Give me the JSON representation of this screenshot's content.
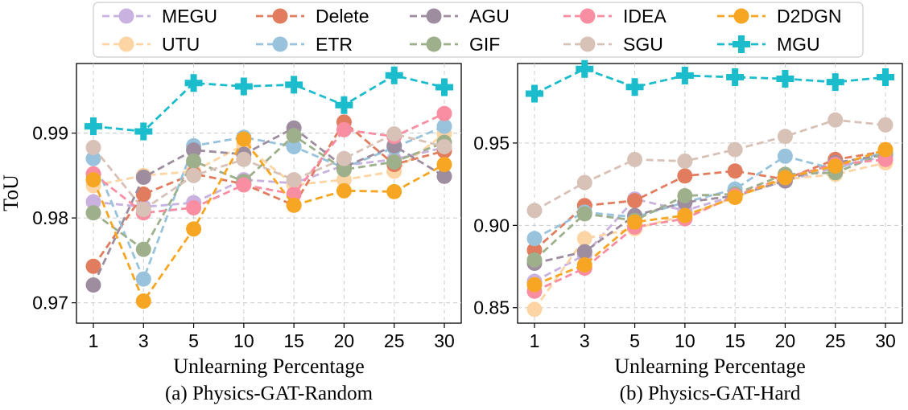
{
  "figure": {
    "legend": [
      {
        "name": "MEGU",
        "color": "#c9b1e0",
        "marker": "circle"
      },
      {
        "name": "UTU",
        "color": "#fdd5a5",
        "marker": "circle"
      },
      {
        "name": "Delete",
        "color": "#e27c5f",
        "marker": "circle"
      },
      {
        "name": "ETR",
        "color": "#99c3dc",
        "marker": "circle"
      },
      {
        "name": "AGU",
        "color": "#9e8d9e",
        "marker": "circle"
      },
      {
        "name": "GIF",
        "color": "#9eb08b",
        "marker": "circle"
      },
      {
        "name": "IDEA",
        "color": "#f98ea2",
        "marker": "circle"
      },
      {
        "name": "SGU",
        "color": "#d8c1b7",
        "marker": "circle"
      },
      {
        "name": "D2DGN",
        "color": "#f6a623",
        "marker": "circle"
      },
      {
        "name": "MGU",
        "color": "#1bbccb",
        "marker": "plus"
      }
    ]
  },
  "chart_data": [
    {
      "type": "line",
      "caption": "(a) Physics-GAT-Random",
      "xlabel": "Unlearning Percentage",
      "ylabel": "ToU",
      "categories": [
        "1",
        "3",
        "5",
        "10",
        "15",
        "20",
        "25",
        "30"
      ],
      "ylim": [
        0.9676,
        0.9982
      ],
      "yticks": [
        0.97,
        0.98,
        0.99
      ],
      "ytick_labels": [
        "0.97",
        "0.98",
        "0.99"
      ],
      "grid": true,
      "series": [
        {
          "name": "MEGU",
          "values": [
            0.9819,
            0.9813,
            0.9818,
            0.9845,
            0.9841,
            0.9862,
            0.9869,
            0.9883
          ]
        },
        {
          "name": "UTU",
          "values": [
            0.9838,
            0.985,
            0.9855,
            0.9886,
            0.9839,
            0.9845,
            0.9855,
            0.9899
          ]
        },
        {
          "name": "Delete",
          "values": [
            0.9743,
            0.9828,
            0.9852,
            0.984,
            0.9815,
            0.9913,
            0.9863,
            0.9879
          ]
        },
        {
          "name": "ETR",
          "values": [
            0.987,
            0.9728,
            0.9885,
            0.9895,
            0.9884,
            0.9859,
            0.9883,
            0.9908
          ]
        },
        {
          "name": "AGU",
          "values": [
            0.9721,
            0.9848,
            0.988,
            0.9875,
            0.9906,
            0.986,
            0.9885,
            0.9849
          ]
        },
        {
          "name": "GIF",
          "values": [
            0.9806,
            0.9763,
            0.9867,
            0.9843,
            0.9897,
            0.9857,
            0.9866,
            0.9889
          ]
        },
        {
          "name": "IDEA",
          "values": [
            0.9852,
            0.9806,
            0.9812,
            0.9839,
            0.9828,
            0.9904,
            0.9896,
            0.9923
          ]
        },
        {
          "name": "SGU",
          "values": [
            0.9883,
            0.981,
            0.985,
            0.9869,
            0.9845,
            0.987,
            0.9899,
            0.9884
          ]
        },
        {
          "name": "D2DGN",
          "values": [
            0.9845,
            0.9702,
            0.9787,
            0.9893,
            0.9815,
            0.9832,
            0.9831,
            0.9863
          ]
        },
        {
          "name": "MGU",
          "values": [
            0.9908,
            0.9902,
            0.9959,
            0.9955,
            0.9957,
            0.9933,
            0.9968,
            0.9954
          ]
        }
      ]
    },
    {
      "type": "line",
      "caption": "(b) Physics-GAT-Hard",
      "xlabel": "Unlearning Percentage",
      "ylabel": "",
      "categories": [
        "1",
        "3",
        "5",
        "10",
        "15",
        "20",
        "25",
        "30"
      ],
      "ylim": [
        0.8406,
        0.9983
      ],
      "yticks": [
        0.85,
        0.9,
        0.95
      ],
      "ytick_labels": [
        "0.85",
        "0.90",
        "0.95"
      ],
      "grid": true,
      "series": [
        {
          "name": "MEGU",
          "values": [
            0.866,
            0.882,
            0.916,
            0.909,
            0.918,
            0.927,
            0.935,
            0.942
          ]
        },
        {
          "name": "UTU",
          "values": [
            0.849,
            0.892,
            0.898,
            0.906,
            0.917,
            0.928,
            0.931,
            0.938
          ]
        },
        {
          "name": "Delete",
          "values": [
            0.885,
            0.912,
            0.915,
            0.93,
            0.933,
            0.928,
            0.94,
            0.945
          ]
        },
        {
          "name": "ETR",
          "values": [
            0.892,
            0.908,
            0.905,
            0.914,
            0.922,
            0.942,
            0.934,
            0.945
          ]
        },
        {
          "name": "AGU",
          "values": [
            0.877,
            0.884,
            0.906,
            0.914,
            0.918,
            0.927,
            0.938,
            0.943
          ]
        },
        {
          "name": "GIF",
          "values": [
            0.879,
            0.907,
            0.903,
            0.918,
            0.919,
            0.931,
            0.932,
            0.944
          ]
        },
        {
          "name": "IDEA",
          "values": [
            0.86,
            0.874,
            0.899,
            0.904,
            0.918,
            0.929,
            0.937,
            0.94
          ]
        },
        {
          "name": "SGU",
          "values": [
            0.909,
            0.926,
            0.94,
            0.939,
            0.946,
            0.954,
            0.964,
            0.961
          ]
        },
        {
          "name": "D2DGN",
          "values": [
            0.864,
            0.876,
            0.902,
            0.906,
            0.917,
            0.929,
            0.936,
            0.946
          ]
        },
        {
          "name": "MGU",
          "values": [
            0.98,
            0.995,
            0.984,
            0.991,
            0.99,
            0.989,
            0.987,
            0.99
          ]
        }
      ]
    }
  ]
}
